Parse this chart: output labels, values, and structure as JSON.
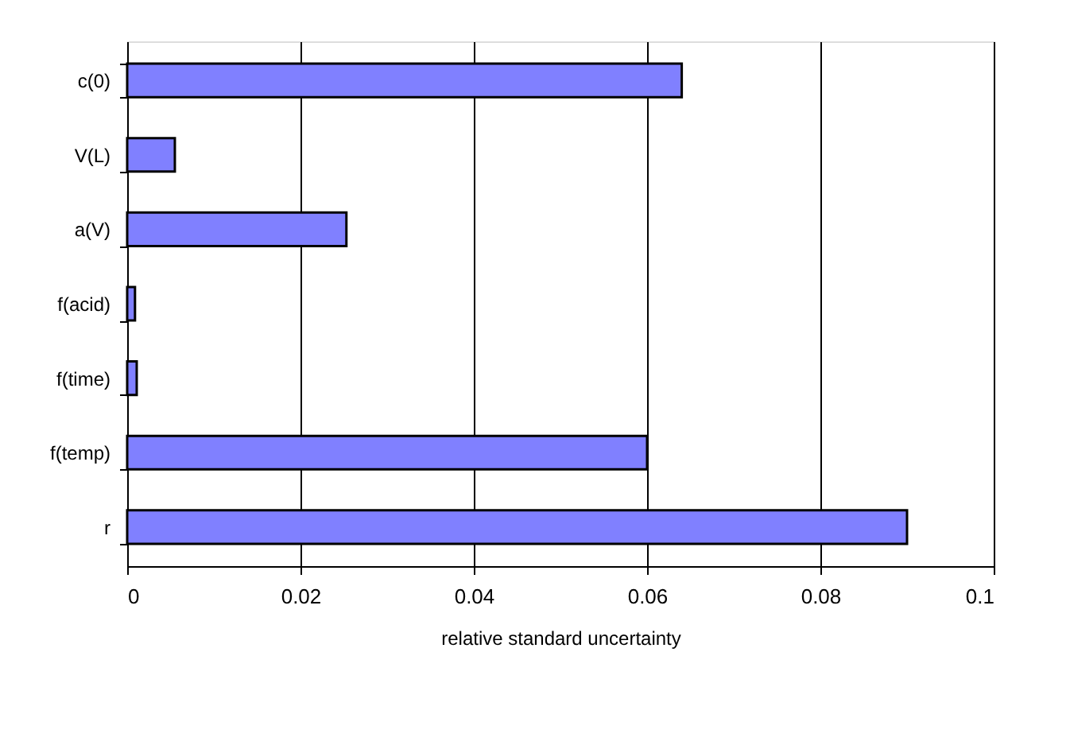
{
  "chart_data": {
    "type": "bar",
    "orientation": "horizontal",
    "xlabel": "relative standard uncertainty",
    "categories": [
      "c(0)",
      "V(L)",
      "a(V)",
      "f(acid)",
      "f(time)",
      "f(temp)",
      "r"
    ],
    "values": [
      0.064,
      0.0055,
      0.0253,
      0.0009,
      0.0011,
      0.06,
      0.09
    ],
    "color": "#8080ff",
    "xlim": [
      0,
      0.1
    ],
    "xticks": [
      0,
      0.02,
      0.04,
      0.06,
      0.08,
      0.1
    ],
    "grid": "x"
  }
}
